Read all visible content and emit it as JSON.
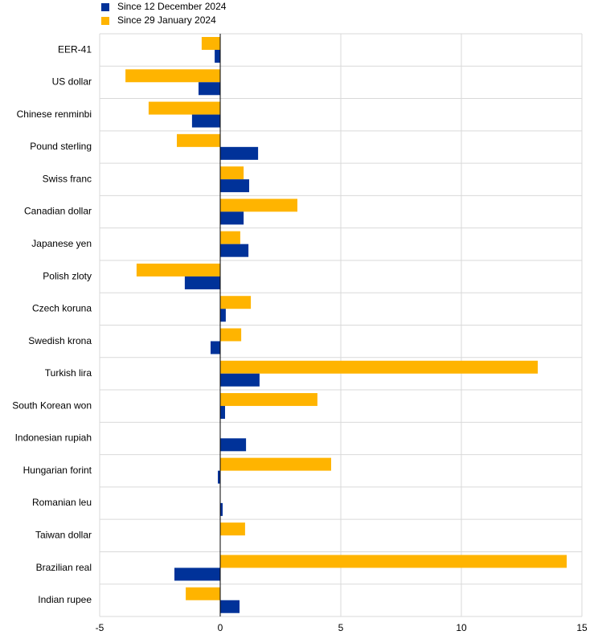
{
  "chart_data": {
    "type": "hbar",
    "categories": [
      "EER-41",
      "US dollar",
      "Chinese renminbi",
      "Pound sterling",
      "Swiss franc",
      "Canadian dollar",
      "Japanese yen",
      "Polish zloty",
      "Czech koruna",
      "Swedish krona",
      "Turkish lira",
      "South Korean won",
      "Indonesian rupiah",
      "Hungarian forint",
      "Romanian leu",
      "Taiwan dollar",
      "Brazilian real",
      "Indian rupee"
    ],
    "series": [
      {
        "name": "Since 12 December 2024",
        "color": "#003299",
        "values": [
          -0.23,
          -0.9,
          -1.17,
          1.57,
          1.2,
          0.97,
          1.17,
          -1.47,
          0.23,
          -0.4,
          1.63,
          0.2,
          1.07,
          -0.1,
          0.1,
          0,
          -1.9,
          0.8
        ]
      },
      {
        "name": "Since 29 January 2024",
        "color": "#ffb400",
        "values": [
          -0.77,
          -3.93,
          -2.97,
          -1.8,
          0.97,
          3.2,
          0.83,
          -3.47,
          1.27,
          0.87,
          13.17,
          4.03,
          0,
          4.6,
          0,
          1.03,
          14.37,
          -1.43
        ]
      }
    ],
    "xlim": [
      -5,
      15
    ],
    "xticks": [
      -5,
      0,
      5,
      10,
      15
    ],
    "grid": true,
    "legend": "top-left"
  }
}
